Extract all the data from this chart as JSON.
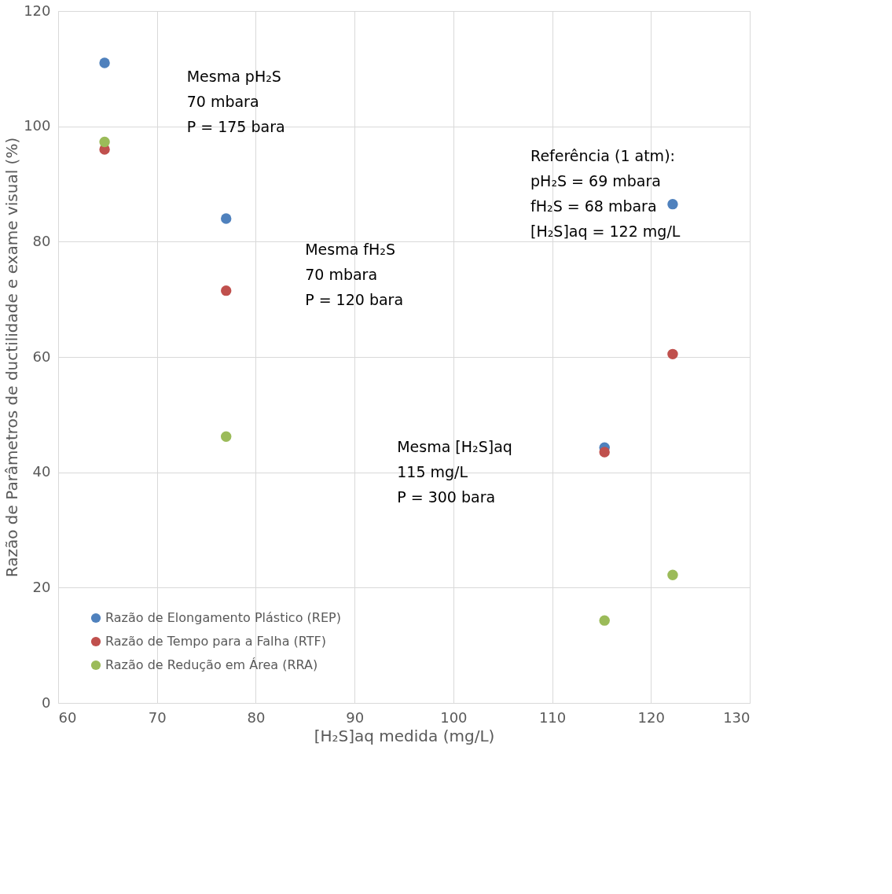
{
  "chart_data": {
    "type": "scatter",
    "xlabel": "[H₂S]aq medida (mg/L)",
    "ylabel": "Razão de Parâmetros de ductilidade e exame visual (%)",
    "x": [
      64.7,
      77,
      115.3,
      122.2
    ],
    "series": [
      {
        "name": "Razão de Elongamento Plástico (REP)",
        "color": "#4f81bd",
        "values": [
          111,
          84,
          44.3,
          86.5
        ]
      },
      {
        "name": "Razão de Tempo para a Falha (RTF)",
        "color": "#c0504d",
        "values": [
          96,
          71.5,
          43.5,
          60.5
        ]
      },
      {
        "name": "Razão de Redução em Área (RRA)",
        "color": "#9bbb59",
        "values": [
          97.3,
          46.2,
          14.3,
          22.2
        ]
      }
    ],
    "xlim": [
      60,
      130
    ],
    "xticks": [
      60,
      70,
      80,
      90,
      100,
      110,
      120,
      130
    ],
    "ylim": [
      0,
      120
    ],
    "yticks": [
      0,
      20,
      40,
      60,
      80,
      100,
      120
    ],
    "grid": true,
    "legend": "bottom left",
    "marker": "circle",
    "annotations": [
      "Mesma pH₂S\n70 mbara\nP = 175 bara",
      "Mesma fH₂S\n70 mbara\nP = 120 bara",
      "Mesma [H₂S]aq\n115 mg/L\nP = 300 bara",
      "Referência (1 atm):\npH₂S = 69 mbara\nfH₂S = 68 mbara\n[H₂S]aq = 122 mg/L"
    ]
  }
}
